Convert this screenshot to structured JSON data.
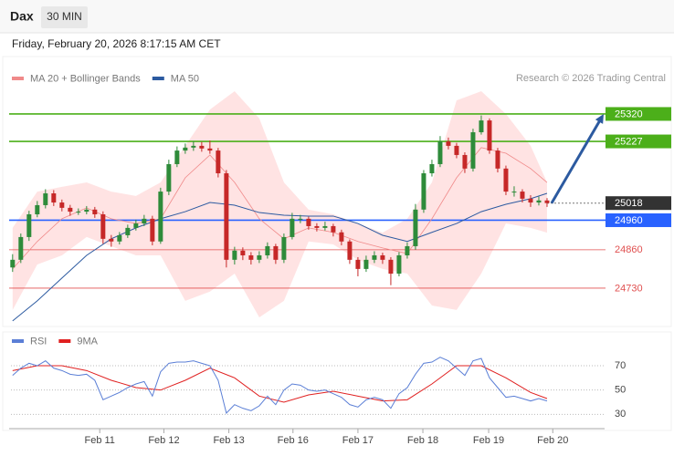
{
  "header": {
    "title": "Dax",
    "interval": "30 MIN",
    "timestamp": "Friday, February 20, 2026 8:17:15 AM CET",
    "credit": "Research © 2026 Trading Central"
  },
  "chart_data": [
    {
      "type": "candlestick",
      "xlim": [
        -0.2,
        72
      ],
      "ylim": [
        24600,
        25550
      ],
      "up_color": "#2e8b3a",
      "down_color": "#c62828",
      "candles": [
        [
          24800,
          24845,
          24785,
          24826
        ],
        [
          24826,
          24915,
          24815,
          24903
        ],
        [
          24903,
          24992,
          24890,
          24980
        ],
        [
          24980,
          25025,
          24970,
          25011
        ],
        [
          25011,
          25065,
          25000,
          25051
        ],
        [
          25051,
          25062,
          25008,
          25020
        ],
        [
          25020,
          25030,
          24990,
          25002
        ],
        [
          25002,
          25012,
          24975,
          24989
        ],
        [
          24989,
          25000,
          24978,
          24989
        ],
        [
          24989,
          25008,
          24980,
          24996
        ],
        [
          24996,
          25005,
          24968,
          24980
        ],
        [
          24980,
          24990,
          24880,
          24897
        ],
        [
          24897,
          24910,
          24870,
          24888
        ],
        [
          24888,
          24920,
          24878,
          24909
        ],
        [
          24909,
          24945,
          24900,
          24934
        ],
        [
          24934,
          24962,
          24925,
          24949
        ],
        [
          24949,
          24978,
          24940,
          24965
        ],
        [
          24965,
          24975,
          24875,
          24888
        ],
        [
          24888,
          25070,
          24880,
          25057
        ],
        [
          25057,
          25165,
          25045,
          25150
        ],
        [
          25150,
          25210,
          25140,
          25196
        ],
        [
          25196,
          25220,
          25185,
          25206
        ],
        [
          25206,
          25228,
          25195,
          25212
        ],
        [
          25212,
          25225,
          25192,
          25203
        ],
        [
          25203,
          25230,
          25185,
          25196
        ],
        [
          25196,
          25205,
          25105,
          25119
        ],
        [
          25119,
          25130,
          24800,
          24826
        ],
        [
          24826,
          24870,
          24810,
          24857
        ],
        [
          24857,
          24868,
          24825,
          24841
        ],
        [
          24841,
          24852,
          24810,
          24826
        ],
        [
          24826,
          24855,
          24815,
          24841
        ],
        [
          24841,
          24885,
          24830,
          24872
        ],
        [
          24872,
          24880,
          24812,
          24826
        ],
        [
          24826,
          24915,
          24815,
          24903
        ],
        [
          24903,
          24985,
          24895,
          24965
        ],
        [
          24965,
          24978,
          24950,
          24965
        ],
        [
          24965,
          24972,
          24928,
          24940
        ],
        [
          24940,
          24950,
          24922,
          24934
        ],
        [
          24934,
          24955,
          24925,
          24940
        ],
        [
          24940,
          24948,
          24905,
          24919
        ],
        [
          24919,
          24928,
          24875,
          24888
        ],
        [
          24888,
          24895,
          24812,
          24826
        ],
        [
          24826,
          24835,
          24770,
          24795
        ],
        [
          24795,
          24840,
          24785,
          24826
        ],
        [
          24826,
          24855,
          24815,
          24841
        ],
        [
          24841,
          24850,
          24812,
          24826
        ],
        [
          24826,
          24835,
          24740,
          24779
        ],
        [
          24779,
          24852,
          24770,
          24841
        ],
        [
          24841,
          24885,
          24830,
          24872
        ],
        [
          24872,
          25015,
          24860,
          24996
        ],
        [
          24996,
          25130,
          24985,
          25119
        ],
        [
          25119,
          25165,
          25108,
          25150
        ],
        [
          25150,
          25245,
          25140,
          25227
        ],
        [
          25227,
          25240,
          25200,
          25212
        ],
        [
          25212,
          25222,
          25170,
          25181
        ],
        [
          25181,
          25190,
          25120,
          25135
        ],
        [
          25135,
          25270,
          25125,
          25258
        ],
        [
          25258,
          25315,
          25250,
          25298
        ],
        [
          25298,
          25305,
          25185,
          25196
        ],
        [
          25196,
          25205,
          25122,
          25135
        ],
        [
          25135,
          25145,
          25045,
          25057
        ],
        [
          25057,
          25075,
          25040,
          25057
        ],
        [
          25057,
          25065,
          25020,
          25033
        ],
        [
          25033,
          25045,
          25005,
          25020
        ],
        [
          25020,
          25040,
          25010,
          25027
        ],
        [
          25027,
          25035,
          25005,
          25018
        ]
      ],
      "overlay_x": [
        0,
        3,
        6,
        9,
        12,
        15,
        18,
        21,
        24,
        27,
        30,
        33,
        36,
        39,
        42,
        45,
        48,
        51,
        54,
        57,
        60,
        63,
        65
      ],
      "band_color": "#ffdcdc",
      "series": [
        {
          "name": "MA 20 + Bollinger Bands",
          "color": "#f08a8a",
          "values": [
            24795,
            24888,
            24965,
            25002,
            24965,
            24949,
            24965,
            25104,
            25181,
            25088,
            24965,
            24897,
            24934,
            24919,
            24888,
            24866,
            24847,
            24965,
            25104,
            25206,
            25187,
            25135,
            25088
          ],
          "upper": [
            24934,
            25057,
            25073,
            25088,
            25057,
            25042,
            25088,
            25212,
            25335,
            25397,
            25305,
            25088,
            24996,
            24980,
            24949,
            24918,
            24965,
            25088,
            25366,
            25397,
            25320,
            25212,
            25088
          ],
          "lower": [
            24656,
            24810,
            24841,
            24903,
            24872,
            24841,
            24841,
            24687,
            24718,
            24779,
            24631,
            24687,
            24888,
            24878,
            24826,
            24795,
            24779,
            24671,
            24656,
            24779,
            24949,
            24934,
            24918
          ]
        },
        {
          "name": "MA 50",
          "color": "#2c5aa0",
          "values": [
            24619,
            24687,
            24764,
            24841,
            24897,
            24934,
            24965,
            24989,
            25020,
            25011,
            24986,
            24977,
            24974,
            24974,
            24949,
            24909,
            24888,
            24919,
            24949,
            24989,
            25014,
            25033,
            25051
          ]
        }
      ],
      "levels": [
        {
          "value": 25320,
          "color": "#4caf1a",
          "style": "solid",
          "box": true
        },
        {
          "value": 25227,
          "color": "#4caf1a",
          "style": "solid",
          "box": true
        },
        {
          "value": 25018,
          "color": "#333333",
          "style": "dotted",
          "box": true
        },
        {
          "value": 24960,
          "color": "#2962ff",
          "style": "solid",
          "box": true
        },
        {
          "value": 24860,
          "color": "#e05050",
          "style": "solid",
          "box": false
        },
        {
          "value": 24730,
          "color": "#e05050",
          "style": "solid",
          "box": false
        }
      ],
      "arrow_color": "#2c5aa0"
    },
    {
      "type": "line",
      "xlim": [
        -0.2,
        72
      ],
      "ylim": [
        22,
        82
      ],
      "yticks": [
        30,
        50,
        70
      ],
      "grid": true,
      "xticks": [
        {
          "value": 10.6,
          "label": "Feb 11"
        },
        {
          "value": 18.4,
          "label": "Feb 12"
        },
        {
          "value": 26.3,
          "label": "Feb 13"
        },
        {
          "value": 34.1,
          "label": "Feb 16"
        },
        {
          "value": 42,
          "label": "Feb 17"
        },
        {
          "value": 49.9,
          "label": "Feb 18"
        },
        {
          "value": 57.9,
          "label": "Feb 19"
        },
        {
          "value": 65.7,
          "label": "Feb 20"
        }
      ],
      "series": [
        {
          "name": "RSI",
          "color": "#5b7fd6",
          "x": [
            0,
            1,
            2,
            3,
            4,
            5,
            6,
            7,
            8,
            9,
            10,
            11,
            12,
            13,
            14,
            15,
            16,
            17,
            18,
            19,
            20,
            21,
            22,
            23,
            24,
            25,
            26,
            27,
            28,
            29,
            30,
            31,
            32,
            33,
            34,
            35,
            36,
            37,
            38,
            39,
            40,
            41,
            42,
            43,
            44,
            45,
            46,
            47,
            48,
            49,
            50,
            51,
            52,
            53,
            54,
            55,
            56,
            57,
            58,
            59,
            60,
            61,
            62,
            63,
            64,
            65
          ],
          "values": [
            62,
            68,
            72,
            70,
            74,
            68,
            66,
            63,
            62,
            63,
            58,
            42,
            45,
            48,
            52,
            55,
            57,
            45,
            65,
            72,
            73,
            73,
            74,
            72,
            70,
            58,
            31,
            38,
            35,
            33,
            37,
            45,
            38,
            50,
            55,
            54,
            50,
            49,
            50,
            47,
            44,
            38,
            36,
            42,
            44,
            42,
            35,
            47,
            52,
            63,
            72,
            73,
            77,
            74,
            68,
            62,
            74,
            76,
            60,
            52,
            44,
            45,
            43,
            41,
            43,
            41
          ]
        },
        {
          "name": "9MA",
          "color": "#e02020",
          "x": [
            0,
            3,
            6,
            9,
            12,
            15,
            18,
            21,
            24,
            27,
            30,
            33,
            36,
            39,
            42,
            45,
            48,
            51,
            54,
            57,
            60,
            63,
            65
          ],
          "values": [
            66,
            70,
            70,
            66,
            58,
            52,
            50,
            58,
            68,
            60,
            45,
            40,
            46,
            49,
            45,
            41,
            42,
            55,
            70,
            70,
            60,
            48,
            43
          ]
        }
      ]
    }
  ]
}
